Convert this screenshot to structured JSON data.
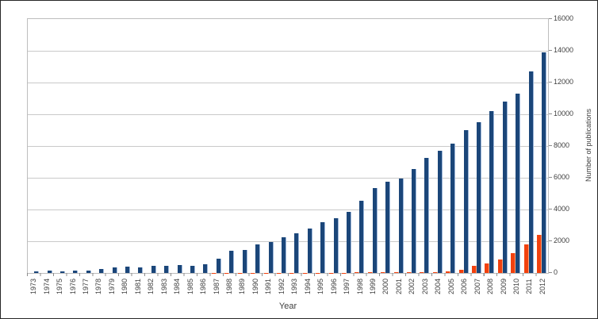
{
  "figure": {
    "background_color": "#ffffff",
    "border_color": "#262626",
    "plot_border_color": "#bdbdbd",
    "gridline_color": "#c9c9c9",
    "text_color": "#404040"
  },
  "chart_data": {
    "type": "bar",
    "title": "",
    "xlabel": "Year",
    "ylabel": "Number of publications",
    "ylim": [
      0,
      16000
    ],
    "ytick_step": 2000,
    "ytick_labels": [
      "0",
      "2000",
      "4000",
      "6000",
      "8000",
      "10000",
      "12000",
      "14000",
      "16000"
    ],
    "grid": "horizontal",
    "legend": "none",
    "y_axis_side": "right",
    "bar_order_in_cluster": [
      "red-series",
      "blue-series"
    ],
    "categories": [
      "1973",
      "1974",
      "1975",
      "1976",
      "1977",
      "1978",
      "1979",
      "1980",
      "1981",
      "1982",
      "1983",
      "1984",
      "1985",
      "1986",
      "1987",
      "1988",
      "1989",
      "1990",
      "1991",
      "1992",
      "1993",
      "1994",
      "1995",
      "1996",
      "1997",
      "1998",
      "1999",
      "2000",
      "2001",
      "2002",
      "2003",
      "2004",
      "2005",
      "2006",
      "2007",
      "2008",
      "2009",
      "2010",
      "2011",
      "2012"
    ],
    "series": [
      {
        "name": "red-series",
        "color": "#f2410e",
        "values": [
          0,
          0,
          0,
          0,
          0,
          0,
          0,
          0,
          0,
          0,
          0,
          0,
          0,
          0,
          5,
          8,
          8,
          10,
          12,
          15,
          15,
          18,
          20,
          22,
          25,
          30,
          35,
          40,
          45,
          55,
          60,
          75,
          120,
          220,
          430,
          600,
          875,
          1240,
          1780,
          2400
        ]
      },
      {
        "name": "blue-series",
        "color": "#1b4679",
        "values": [
          80,
          170,
          110,
          170,
          155,
          230,
          340,
          390,
          360,
          470,
          440,
          500,
          465,
          545,
          910,
          1410,
          1470,
          1810,
          1950,
          2250,
          2480,
          2810,
          3220,
          3460,
          3840,
          4560,
          5330,
          5760,
          5960,
          6530,
          7240,
          7710,
          8160,
          9020,
          9510,
          10200,
          10800,
          11280,
          12680,
          13900
        ]
      }
    ]
  }
}
